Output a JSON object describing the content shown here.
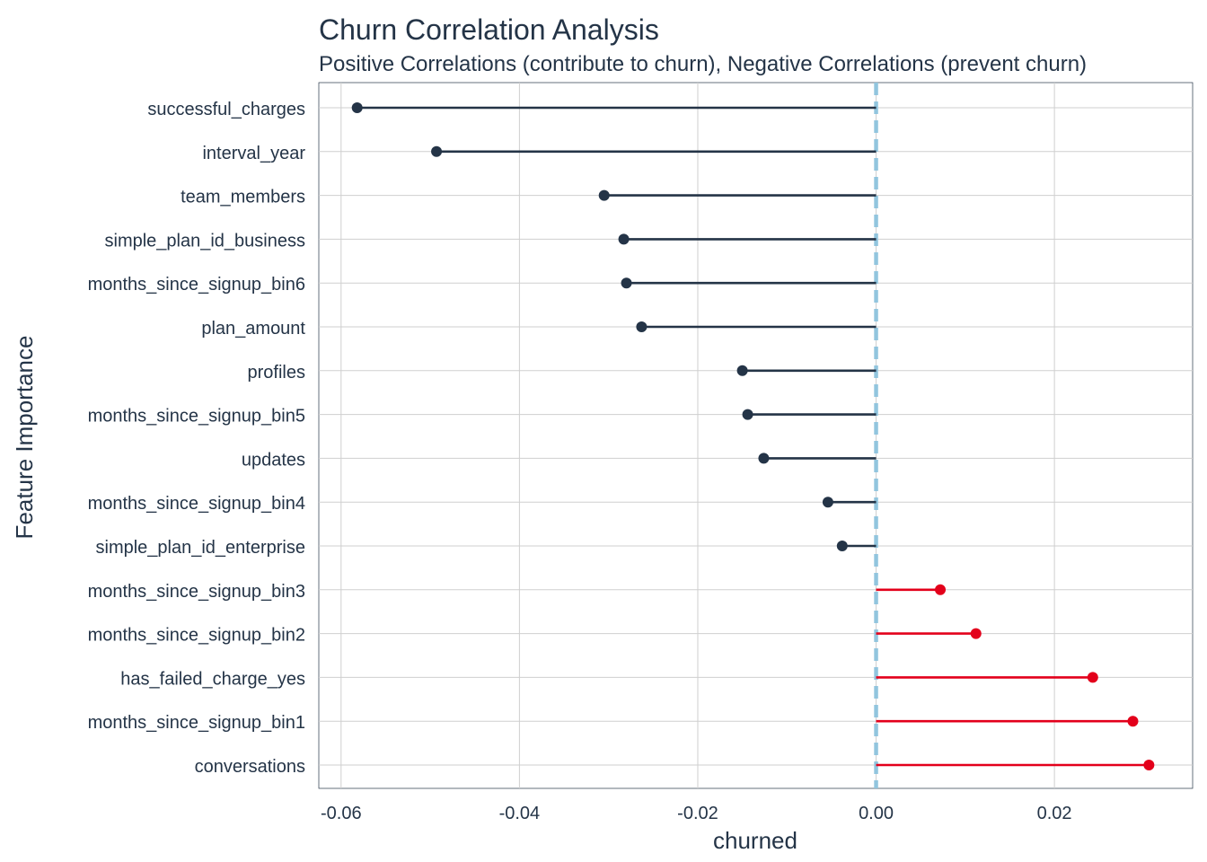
{
  "chart_data": {
    "type": "lollipop",
    "title": "Churn Correlation Analysis",
    "subtitle": "Positive Correlations (contribute to churn), Negative Correlations (prevent churn)",
    "xlabel": "churned",
    "ylabel": "Feature Importance",
    "xlim": [
      -0.0625,
      0.0355
    ],
    "x_ticks": [
      -0.06,
      -0.04,
      -0.02,
      0.0,
      0.02
    ],
    "x_tick_labels": [
      "-0.06",
      "-0.04",
      "-0.02",
      "0.00",
      "0.02"
    ],
    "reference_line": 0.0,
    "colors": {
      "negative": "#243447",
      "positive": "#e3001b",
      "reference": "#92c5de",
      "grid": "#cfcfcf",
      "text": "#243447"
    },
    "categories": [
      "successful_charges",
      "interval_year",
      "team_members",
      "simple_plan_id_business",
      "months_since_signup_bin6",
      "plan_amount",
      "profiles",
      "months_since_signup_bin5",
      "updates",
      "months_since_signup_bin4",
      "simple_plan_id_enterprise",
      "months_since_signup_bin3",
      "months_since_signup_bin2",
      "has_failed_charge_yes",
      "months_since_signup_bin1",
      "conversations"
    ],
    "values": [
      -0.0582,
      -0.0493,
      -0.0305,
      -0.0283,
      -0.028,
      -0.0263,
      -0.015,
      -0.0144,
      -0.0126,
      -0.0054,
      -0.0038,
      0.0072,
      0.0112,
      0.0243,
      0.0288,
      0.0306
    ]
  }
}
